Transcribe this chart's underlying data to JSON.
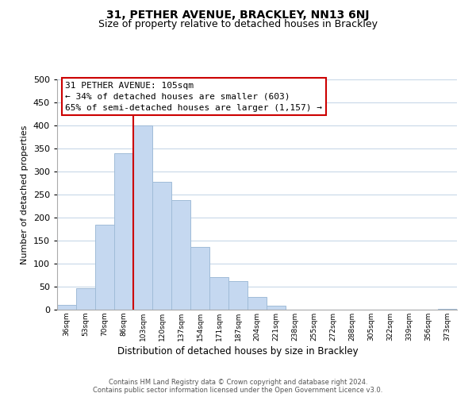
{
  "title": "31, PETHER AVENUE, BRACKLEY, NN13 6NJ",
  "subtitle": "Size of property relative to detached houses in Brackley",
  "xlabel": "Distribution of detached houses by size in Brackley",
  "ylabel": "Number of detached properties",
  "bar_color": "#c5d8f0",
  "bar_edge_color": "#a0bcd8",
  "vline_color": "#cc0000",
  "vline_x_index": 4,
  "categories": [
    "36sqm",
    "53sqm",
    "70sqm",
    "86sqm",
    "103sqm",
    "120sqm",
    "137sqm",
    "154sqm",
    "171sqm",
    "187sqm",
    "204sqm",
    "221sqm",
    "238sqm",
    "255sqm",
    "272sqm",
    "288sqm",
    "305sqm",
    "322sqm",
    "339sqm",
    "356sqm",
    "373sqm"
  ],
  "values": [
    10,
    47,
    185,
    340,
    400,
    278,
    238,
    136,
    70,
    62,
    27,
    8,
    0,
    0,
    0,
    0,
    0,
    0,
    0,
    0,
    2
  ],
  "ylim": [
    0,
    500
  ],
  "yticks": [
    0,
    50,
    100,
    150,
    200,
    250,
    300,
    350,
    400,
    450,
    500
  ],
  "annotation_title": "31 PETHER AVENUE: 105sqm",
  "annotation_line1": "← 34% of detached houses are smaller (603)",
  "annotation_line2": "65% of semi-detached houses are larger (1,157) →",
  "annotation_box_color": "#ffffff",
  "annotation_box_edge": "#cc0000",
  "footer1": "Contains HM Land Registry data © Crown copyright and database right 2024.",
  "footer2": "Contains public sector information licensed under the Open Government Licence v3.0.",
  "background_color": "#ffffff",
  "grid_color": "#c8d8e8",
  "title_fontsize": 10,
  "subtitle_fontsize": 9,
  "annotation_fontsize": 8,
  "footer_fontsize": 6
}
